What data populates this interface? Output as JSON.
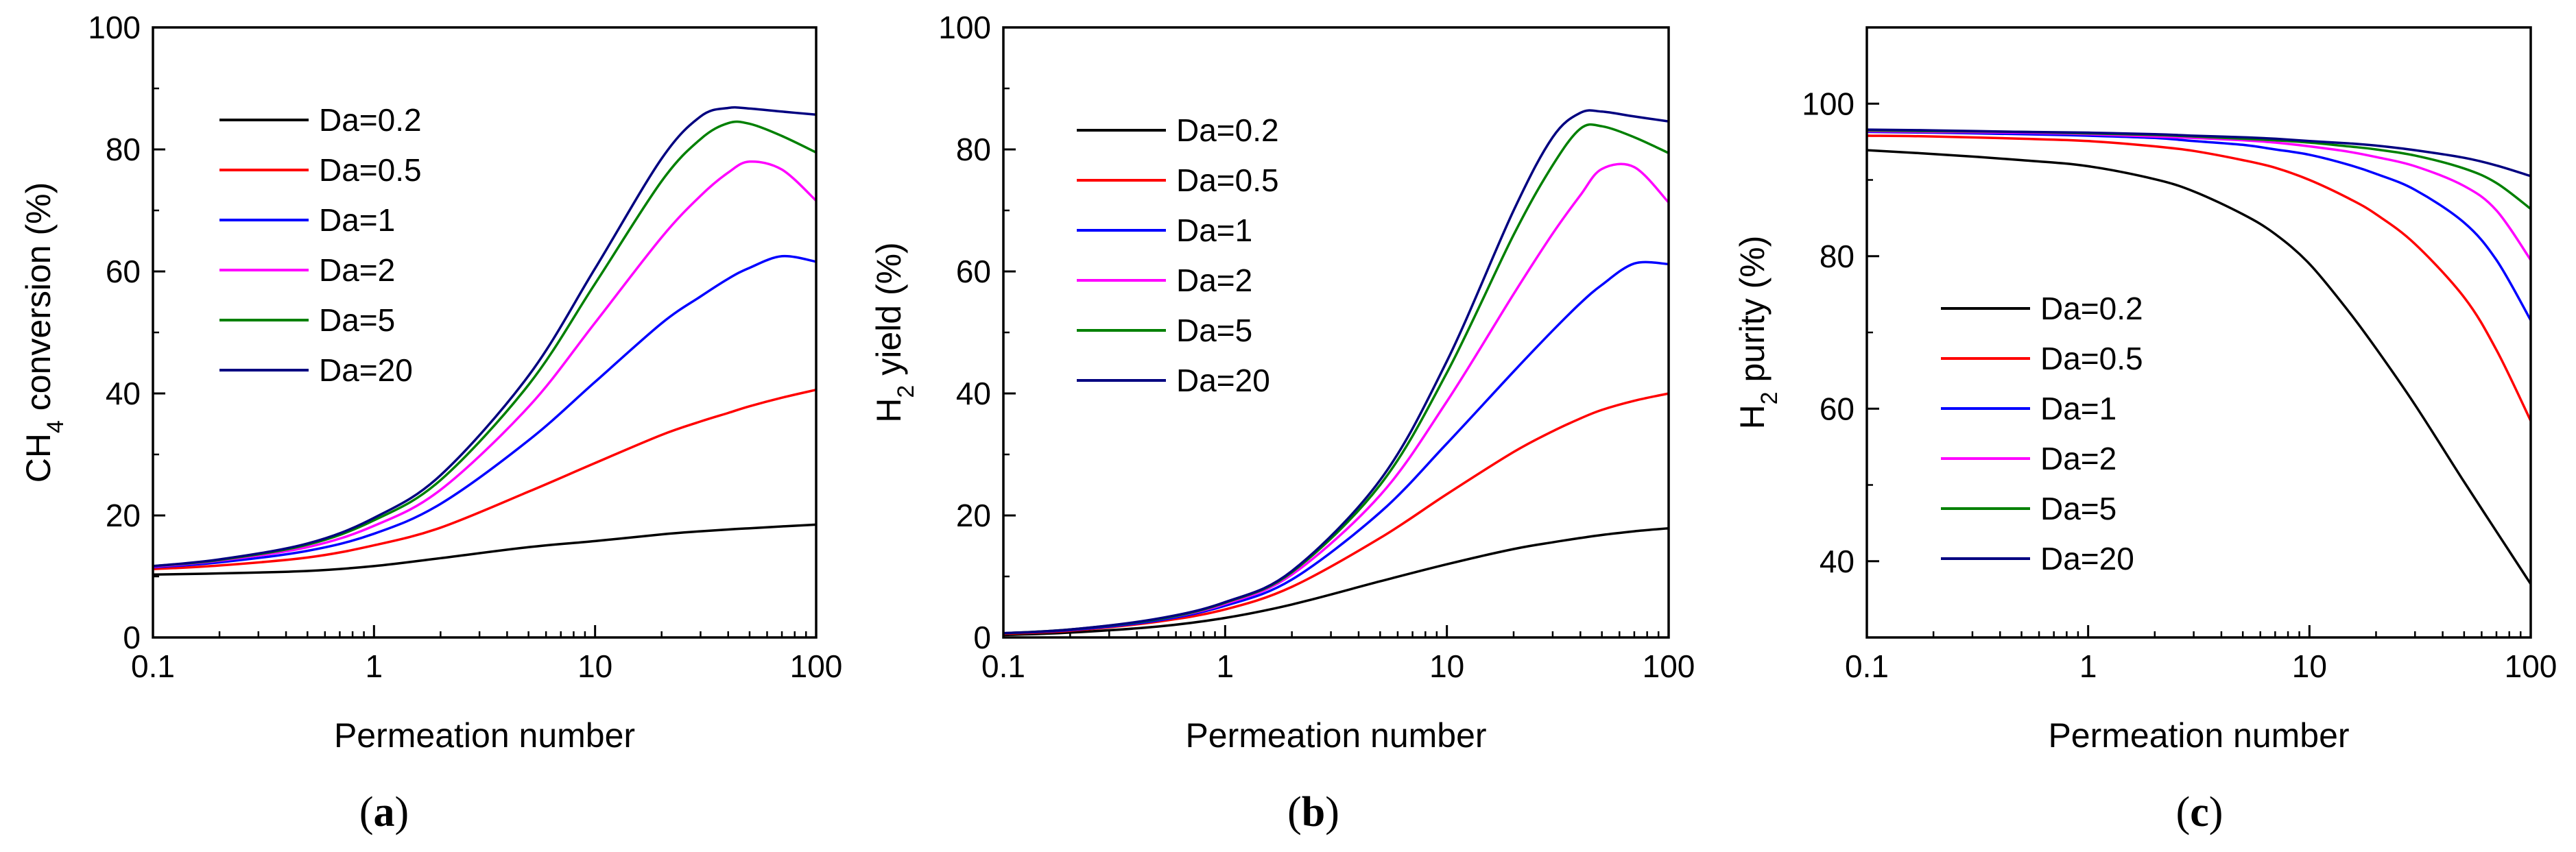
{
  "chart_data": [
    {
      "type": "line",
      "panel": "a",
      "caption": "(a)",
      "xlabel": "Permeation number",
      "ylabel": "CH4 conversion (%)",
      "xscale": "log",
      "xlim": [
        0.1,
        100
      ],
      "ylim": [
        0,
        100
      ],
      "xticks": [
        0.1,
        1,
        10,
        100
      ],
      "xtick_labels": [
        "0.1",
        "1",
        "10",
        "100"
      ],
      "yticks": [
        0,
        20,
        40,
        60,
        80,
        100
      ],
      "ytick_labels": [
        "0",
        "20",
        "40",
        "60",
        "80",
        "100"
      ],
      "legend_position": "upper-left",
      "x": [
        0.1,
        0.2,
        0.5,
        1,
        2,
        5,
        10,
        20,
        30,
        40,
        50,
        70,
        100
      ],
      "series": [
        {
          "name": "Da=0.2",
          "color": "#000000",
          "values": [
            10.3,
            10.5,
            10.9,
            11.7,
            13.0,
            14.8,
            15.8,
            16.9,
            17.4,
            17.7,
            17.9,
            18.2,
            18.5
          ]
        },
        {
          "name": "Da=0.5",
          "color": "#ff0000",
          "values": [
            11.2,
            11.8,
            13.1,
            15.1,
            18.0,
            23.9,
            28.6,
            33.2,
            35.4,
            36.8,
            37.9,
            39.3,
            40.6
          ]
        },
        {
          "name": "Da=1",
          "color": "#0000ff",
          "values": [
            11.5,
            12.3,
            14.2,
            17.0,
            21.9,
            32.3,
            41.9,
            51.5,
            55.9,
            58.8,
            60.6,
            62.5,
            61.6
          ]
        },
        {
          "name": "Da=2",
          "color": "#ff00ff",
          "values": [
            11.6,
            12.6,
            14.8,
            18.3,
            24.2,
            37.8,
            51.6,
            65.6,
            72.4,
            76.2,
            78.0,
            76.7,
            71.6
          ]
        },
        {
          "name": "Da=5",
          "color": "#008000",
          "values": [
            11.7,
            12.7,
            15.2,
            19.2,
            25.8,
            41.4,
            58.0,
            74.8,
            81.7,
            84.3,
            84.2,
            82.2,
            79.5
          ]
        },
        {
          "name": "Da=20",
          "color": "#000080",
          "values": [
            11.7,
            12.8,
            15.4,
            19.6,
            26.6,
            42.9,
            60.5,
            78.5,
            85.4,
            86.8,
            86.7,
            86.2,
            85.7
          ]
        }
      ]
    },
    {
      "type": "line",
      "panel": "b",
      "caption": "(b)",
      "xlabel": "Permeation number",
      "ylabel": "H2 yield (%)",
      "xscale": "log",
      "xlim": [
        0.1,
        100
      ],
      "ylim": [
        0,
        100
      ],
      "xticks": [
        0.1,
        1,
        10,
        100
      ],
      "xtick_labels": [
        "0.1",
        "1",
        "10",
        "100"
      ],
      "yticks": [
        0,
        20,
        40,
        60,
        80,
        100
      ],
      "ytick_labels": [
        "0",
        "20",
        "40",
        "60",
        "80",
        "100"
      ],
      "legend_position": "upper-left",
      "x": [
        0.1,
        0.2,
        0.5,
        1,
        2,
        5,
        10,
        20,
        30,
        40,
        50,
        70,
        100
      ],
      "series": [
        {
          "name": "Da=0.2",
          "color": "#000000",
          "values": [
            0.4,
            0.8,
            1.8,
            3.2,
            5.4,
            9.2,
            12.0,
            14.5,
            15.6,
            16.3,
            16.8,
            17.4,
            17.9
          ]
        },
        {
          "name": "Da=0.5",
          "color": "#ff0000",
          "values": [
            0.6,
            1.1,
            2.6,
            4.6,
            8.3,
            16.3,
            23.5,
            30.4,
            33.8,
            35.9,
            37.3,
            38.8,
            40.0
          ]
        },
        {
          "name": "Da=1",
          "color": "#0000ff",
          "values": [
            0.7,
            1.2,
            2.8,
            5.2,
            9.5,
            20.5,
            31.8,
            43.6,
            50.3,
            54.8,
            57.8,
            61.3,
            61.2
          ]
        },
        {
          "name": "Da=2",
          "color": "#ff00ff",
          "values": [
            0.7,
            1.3,
            3.0,
            5.5,
            10.3,
            23.3,
            38.7,
            56.3,
            66.2,
            72.5,
            76.8,
            77.1,
            71.3
          ]
        },
        {
          "name": "Da=5",
          "color": "#008000",
          "values": [
            0.7,
            1.3,
            3.0,
            5.7,
            10.7,
            25.0,
            43.4,
            66.0,
            77.4,
            83.4,
            83.8,
            82.0,
            79.4
          ]
        },
        {
          "name": "Da=20",
          "color": "#000080",
          "values": [
            0.7,
            1.3,
            3.1,
            5.8,
            10.9,
            25.8,
            45.3,
            70.0,
            82.0,
            86.0,
            86.2,
            85.4,
            84.6
          ]
        }
      ]
    },
    {
      "type": "line",
      "panel": "c",
      "caption": "(c)",
      "xlabel": "Permeation number",
      "ylabel": "H2 purity (%)",
      "xscale": "log",
      "xlim": [
        0.1,
        100
      ],
      "ylim": [
        30,
        110
      ],
      "xticks": [
        0.1,
        1,
        10,
        100
      ],
      "xtick_labels": [
        "0.1",
        "1",
        "10",
        "100"
      ],
      "yticks": [
        40,
        60,
        80,
        100
      ],
      "ytick_labels": [
        "40",
        "60",
        "80",
        "100"
      ],
      "legend_position": "lower-left",
      "x": [
        0.1,
        0.2,
        0.5,
        1,
        2,
        3,
        5,
        7,
        10,
        15,
        20,
        30,
        50,
        70,
        100
      ],
      "series": [
        {
          "name": "Da=0.2",
          "color": "#000000",
          "values": [
            93.9,
            93.4,
            92.6,
            91.8,
            90.1,
            88.5,
            85.5,
            82.9,
            79.0,
            72.8,
            67.9,
            60.5,
            50.4,
            43.9,
            37.0
          ]
        },
        {
          "name": "Da=0.5",
          "color": "#ff0000",
          "values": [
            95.8,
            95.7,
            95.4,
            95.1,
            94.4,
            93.8,
            92.6,
            91.6,
            90.0,
            87.6,
            85.5,
            81.6,
            74.6,
            67.7,
            58.4
          ]
        },
        {
          "name": "Da=1",
          "color": "#0000ff",
          "values": [
            96.3,
            96.2,
            96.0,
            95.8,
            95.5,
            95.1,
            94.6,
            94.0,
            93.3,
            92.0,
            90.8,
            88.7,
            84.4,
            79.5,
            71.6
          ]
        },
        {
          "name": "Da=2",
          "color": "#ff00ff",
          "values": [
            96.4,
            96.3,
            96.2,
            96.0,
            95.7,
            95.5,
            95.2,
            94.9,
            94.4,
            93.7,
            93.0,
            91.8,
            89.2,
            86.0,
            79.5
          ]
        },
        {
          "name": "Da=5",
          "color": "#008000",
          "values": [
            96.5,
            96.4,
            96.3,
            96.1,
            95.9,
            95.7,
            95.4,
            95.2,
            94.9,
            94.4,
            94.0,
            93.2,
            91.5,
            89.6,
            86.2
          ]
        },
        {
          "name": "Da=20",
          "color": "#000080",
          "values": [
            96.6,
            96.5,
            96.3,
            96.2,
            96.0,
            95.8,
            95.6,
            95.4,
            95.1,
            94.8,
            94.5,
            93.9,
            92.9,
            91.9,
            90.5
          ]
        }
      ]
    }
  ]
}
